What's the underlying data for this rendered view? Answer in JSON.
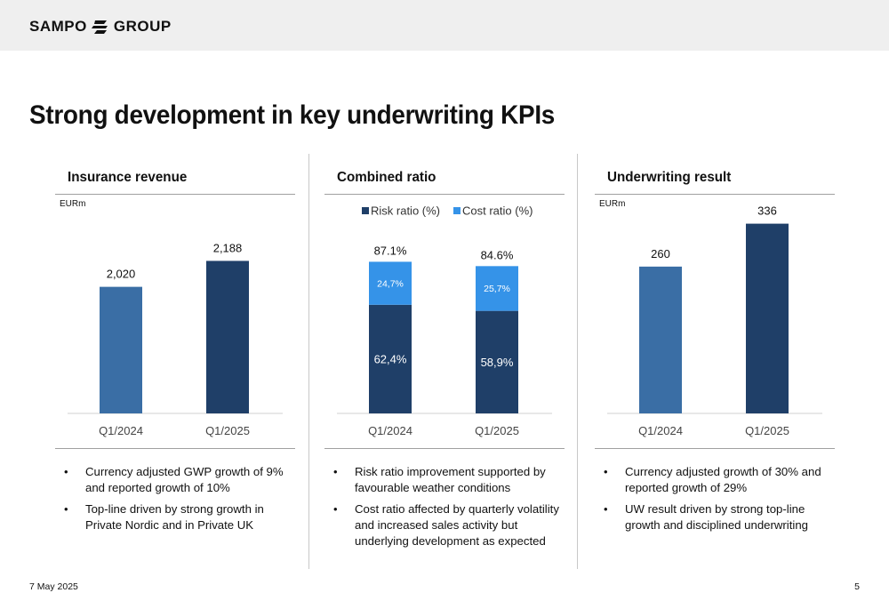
{
  "header": {
    "logo_text_left": "SAMPO",
    "logo_text_right": "GROUP"
  },
  "title": "Strong development in key underwriting KPIs",
  "footer": {
    "date": "7 May 2025",
    "page": "5"
  },
  "colors": {
    "light_blue": "#3a6ea5",
    "navy": "#1f3f68",
    "bright_blue": "#3593e8"
  },
  "panels": [
    {
      "title": "Insurance revenue",
      "unit": "EURm",
      "bullets": [
        "Currency adjusted GWP growth of 9% and reported growth of 10%",
        "Top-line driven by strong growth in Private Nordic and in Private UK"
      ]
    },
    {
      "title": "Combined ratio",
      "unit": "",
      "bullets": [
        "Risk ratio improvement supported by favourable weather conditions",
        "Cost ratio affected by quarterly volatility and increased sales activity but underlying development as expected"
      ]
    },
    {
      "title": "Underwriting result",
      "unit": "EURm",
      "bullets": [
        "Currency adjusted growth of 30% and reported growth of 29%",
        "UW result driven by strong top-line growth and disciplined underwriting"
      ]
    }
  ],
  "chart_data": [
    {
      "type": "bar",
      "title": "Insurance revenue",
      "categories": [
        "Q1/2024",
        "Q1/2025"
      ],
      "values": [
        2020,
        2188
      ],
      "value_labels": [
        "2,020",
        "2,188"
      ],
      "ylim": [
        1200,
        2300
      ],
      "colors": [
        "#3a6ea5",
        "#1f3f68"
      ]
    },
    {
      "type": "bar",
      "stacked": true,
      "title": "Combined ratio",
      "categories": [
        "Q1/2024",
        "Q1/2025"
      ],
      "series": [
        {
          "name": "Risk ratio (%)",
          "values": [
            62.4,
            58.9
          ],
          "labels": [
            "62,4%",
            "58,9%"
          ],
          "color": "#1f3f68"
        },
        {
          "name": "Cost ratio (%)",
          "values": [
            24.7,
            25.7
          ],
          "labels": [
            "24,7%",
            "25,7%"
          ],
          "color": "#3593e8"
        }
      ],
      "totals": [
        87.1,
        84.6
      ],
      "total_labels": [
        "87.1%",
        "84.6%"
      ],
      "legend": "top",
      "ylim": [
        0,
        120
      ]
    },
    {
      "type": "bar",
      "title": "Underwriting result",
      "categories": [
        "Q1/2024",
        "Q1/2025"
      ],
      "values": [
        260,
        336
      ],
      "value_labels": [
        "260",
        "336"
      ],
      "ylim": [
        0,
        370
      ],
      "colors": [
        "#3a6ea5",
        "#1f3f68"
      ]
    }
  ]
}
